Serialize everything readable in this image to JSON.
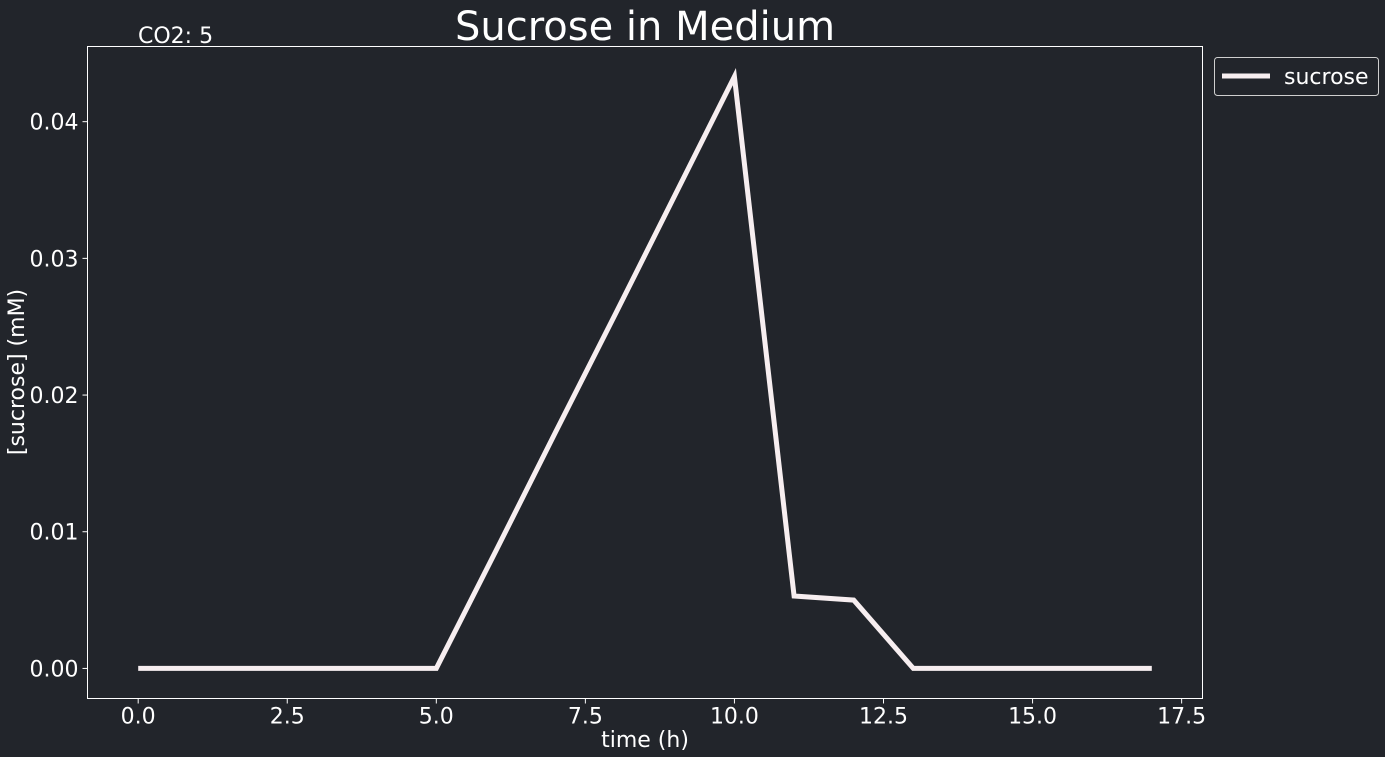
{
  "chart_data": {
    "type": "line",
    "title": "Sucrose in Medium",
    "annotation": "CO2: 5",
    "xlabel": "time (h)",
    "ylabel": "[sucrose] (mM)",
    "xlim": [
      -0.85,
      17.85
    ],
    "ylim": [
      -0.0022,
      0.0455
    ],
    "x_ticks": [
      0.0,
      2.5,
      5.0,
      7.5,
      10.0,
      12.5,
      15.0,
      17.5
    ],
    "x_tick_labels": [
      "0.0",
      "2.5",
      "5.0",
      "7.5",
      "10.0",
      "12.5",
      "15.0",
      "17.5"
    ],
    "y_ticks": [
      0.0,
      0.01,
      0.02,
      0.03,
      0.04
    ],
    "y_tick_labels": [
      "0.00",
      "0.01",
      "0.02",
      "0.03",
      "0.04"
    ],
    "grid": false,
    "legend_position": "outside-top-right",
    "series": [
      {
        "name": "sucrose",
        "color": "#f7eef0",
        "x": [
          0,
          1,
          2,
          3,
          4,
          5,
          6,
          7,
          8,
          9,
          10,
          11,
          12,
          13,
          14,
          15,
          16,
          17
        ],
        "y": [
          0.0,
          0.0,
          0.0,
          0.0,
          0.0,
          0.0,
          0.0086,
          0.0173,
          0.0259,
          0.0346,
          0.0433,
          0.0053,
          0.005,
          0.0,
          0.0,
          0.0,
          0.0,
          0.0
        ]
      }
    ]
  },
  "colors": {
    "background": "#22252b",
    "axes_frame": "#ffffff",
    "text": "#ffffff"
  }
}
